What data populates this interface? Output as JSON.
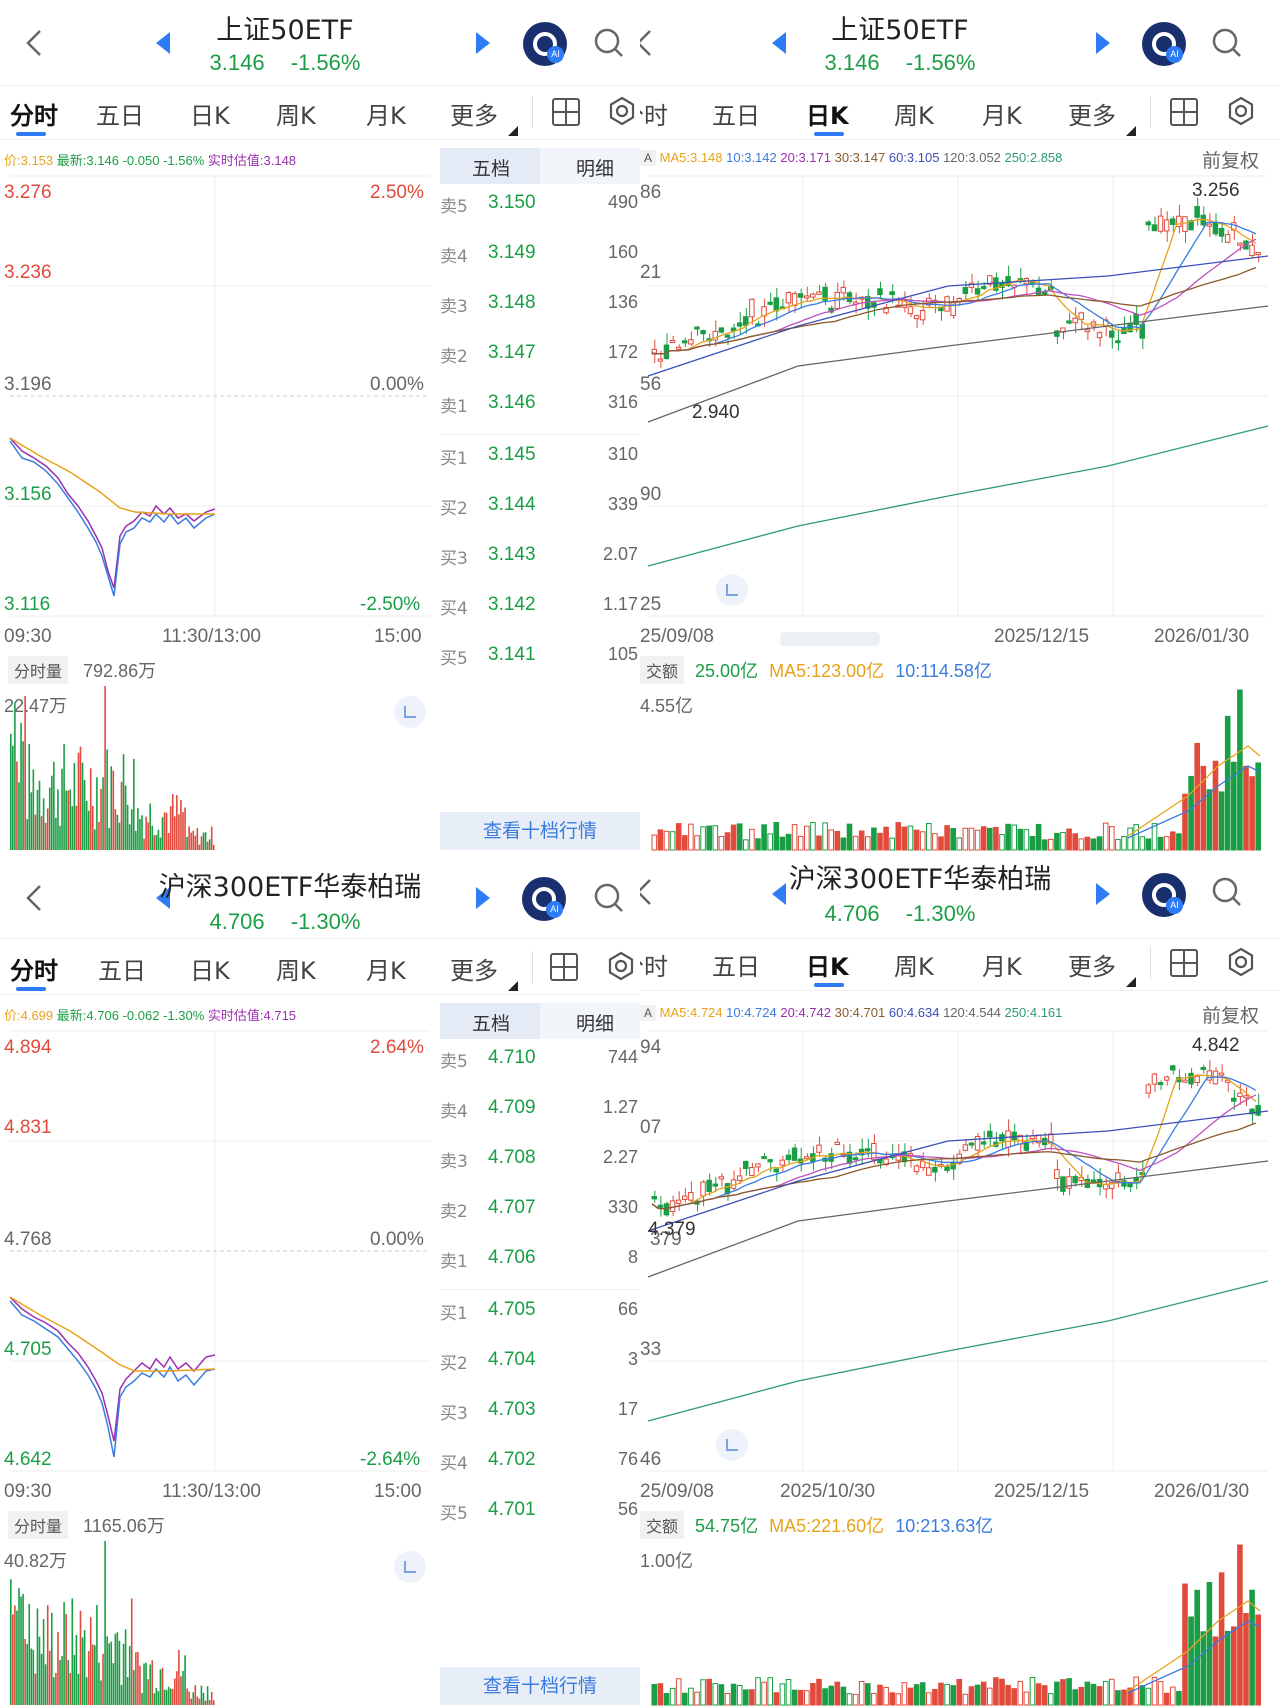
{
  "colors": {
    "up": "#e24a3b",
    "down": "#1a9e45",
    "accent": "#2d7cf6"
  },
  "panels": {
    "tl": {
      "title": "上证50ETF",
      "price": "3.146",
      "change": "-1.56%",
      "tabs": [
        "分时",
        "五日",
        "日K",
        "周K",
        "月K",
        "更多"
      ],
      "info": {
        "avg": "价:3.153",
        "latest": "最新:3.146",
        "chg": "-0.050",
        "pct": "-1.56%",
        "iopv": "实时估值:3.148"
      },
      "axis": {
        "y1": "3.276",
        "y2": "3.236",
        "y3": "3.196",
        "y4": "3.156",
        "y5": "3.116",
        "pct_top": "2.50%",
        "pct_mid": "0.00%",
        "pct_bot": "-2.50%",
        "t1": "09:30",
        "t2": "11:30/13:00",
        "t3": "15:00"
      },
      "volume": {
        "selector": "分时量",
        "value": "792.86万",
        "max": "22.47万"
      },
      "orderbook": {
        "tabs": [
          "五档",
          "明细"
        ],
        "rows": [
          {
            "level": "卖5",
            "price": "3.150",
            "vol": "490"
          },
          {
            "level": "卖4",
            "price": "3.149",
            "vol": "160"
          },
          {
            "level": "卖3",
            "price": "3.148",
            "vol": "136"
          },
          {
            "level": "卖2",
            "price": "3.147",
            "vol": "172"
          },
          {
            "level": "卖1",
            "price": "3.146",
            "vol": "316"
          },
          {
            "level": "买1",
            "price": "3.145",
            "vol": "310"
          },
          {
            "level": "买2",
            "price": "3.144",
            "vol": "339"
          },
          {
            "level": "买3",
            "price": "3.143",
            "vol": "2.07"
          },
          {
            "level": "买4",
            "price": "3.142",
            "vol": "1.17"
          },
          {
            "level": "买5",
            "price": "3.141",
            "vol": "105"
          }
        ],
        "button": "查看十档行情"
      }
    },
    "tr": {
      "title": "上证50ETF",
      "price": "3.146",
      "change": "-1.56%",
      "tabs": [
        "分时",
        "五日",
        "日K",
        "周K",
        "月K",
        "更多"
      ],
      "ma_selector": "A",
      "ma": {
        "ma5": "MA5:3.148",
        "ma10": "10:3.142",
        "ma20": "20:3.171",
        "ma30": "30:3.147",
        "ma60": "60:3.105",
        "ma120": "120:3.052",
        "ma250": "250:2.858"
      },
      "adjust": "前复权",
      "axis": {
        "y1": "86",
        "y2": "21",
        "y3": "56",
        "y4": "90",
        "y5": "25",
        "high": "3.256",
        "low": "2.940",
        "d1": "25/09/08",
        "d2": "",
        "d3": "2025/12/15",
        "d4": "2026/01/30"
      },
      "volume": {
        "selector": "交额",
        "value": "25.00亿",
        "ma5": "MA5:123.00亿",
        "ma10": "10:114.58亿",
        "max": "4.55亿"
      }
    },
    "bl": {
      "title": "沪深300ETF华泰柏瑞",
      "price": "4.706",
      "change": "-1.30%",
      "tabs": [
        "分时",
        "五日",
        "日K",
        "周K",
        "月K",
        "更多"
      ],
      "info": {
        "avg": "价:4.699",
        "latest": "最新:4.706",
        "chg": "-0.062",
        "pct": "-1.30%",
        "iopv": "实时估值:4.715"
      },
      "axis": {
        "y1": "4.894",
        "y2": "4.831",
        "y3": "4.768",
        "y4": "4.705",
        "y5": "4.642",
        "pct_top": "2.64%",
        "pct_mid": "0.00%",
        "pct_bot": "-2.64%",
        "t1": "09:30",
        "t2": "11:30/13:00",
        "t3": "15:00"
      },
      "volume": {
        "selector": "分时量",
        "value": "1165.06万",
        "max": "40.82万"
      },
      "orderbook": {
        "tabs": [
          "五档",
          "明细"
        ],
        "rows": [
          {
            "level": "卖5",
            "price": "4.710",
            "vol": "744"
          },
          {
            "level": "卖4",
            "price": "4.709",
            "vol": "1.27"
          },
          {
            "level": "卖3",
            "price": "4.708",
            "vol": "2.27"
          },
          {
            "level": "卖2",
            "price": "4.707",
            "vol": "330"
          },
          {
            "level": "卖1",
            "price": "4.706",
            "vol": "8"
          },
          {
            "level": "买1",
            "price": "4.705",
            "vol": "66"
          },
          {
            "level": "买2",
            "price": "4.704",
            "vol": "3"
          },
          {
            "level": "买3",
            "price": "4.703",
            "vol": "17"
          },
          {
            "level": "买4",
            "price": "4.702",
            "vol": "76"
          },
          {
            "level": "买5",
            "price": "4.701",
            "vol": "56"
          }
        ],
        "button": "查看十档行情"
      }
    },
    "br": {
      "title": "沪深300ETF华泰柏瑞",
      "price": "4.706",
      "change": "-1.30%",
      "tabs": [
        "分时",
        "五日",
        "日K",
        "周K",
        "月K",
        "更多"
      ],
      "ma_selector": "A",
      "ma": {
        "ma5": "MA5:4.724",
        "ma10": "10:4.724",
        "ma20": "20:4.742",
        "ma30": "30:4.701",
        "ma60": "60:4.634",
        "ma120": "120:4.544",
        "ma250": "250:4.161"
      },
      "adjust": "前复权",
      "axis": {
        "y1": "94",
        "y2": "07",
        "y3": "379",
        "y4": "33",
        "y5": "46",
        "high": "4.842",
        "low": "4.379",
        "d1": "25/09/08",
        "d2": "2025/10/30",
        "d3": "2025/12/15",
        "d4": "2026/01/30"
      },
      "volume": {
        "selector": "交额",
        "value": "54.75亿",
        "ma5": "MA5:221.60亿",
        "ma10": "10:213.63亿",
        "max": "1.00亿"
      }
    }
  }
}
